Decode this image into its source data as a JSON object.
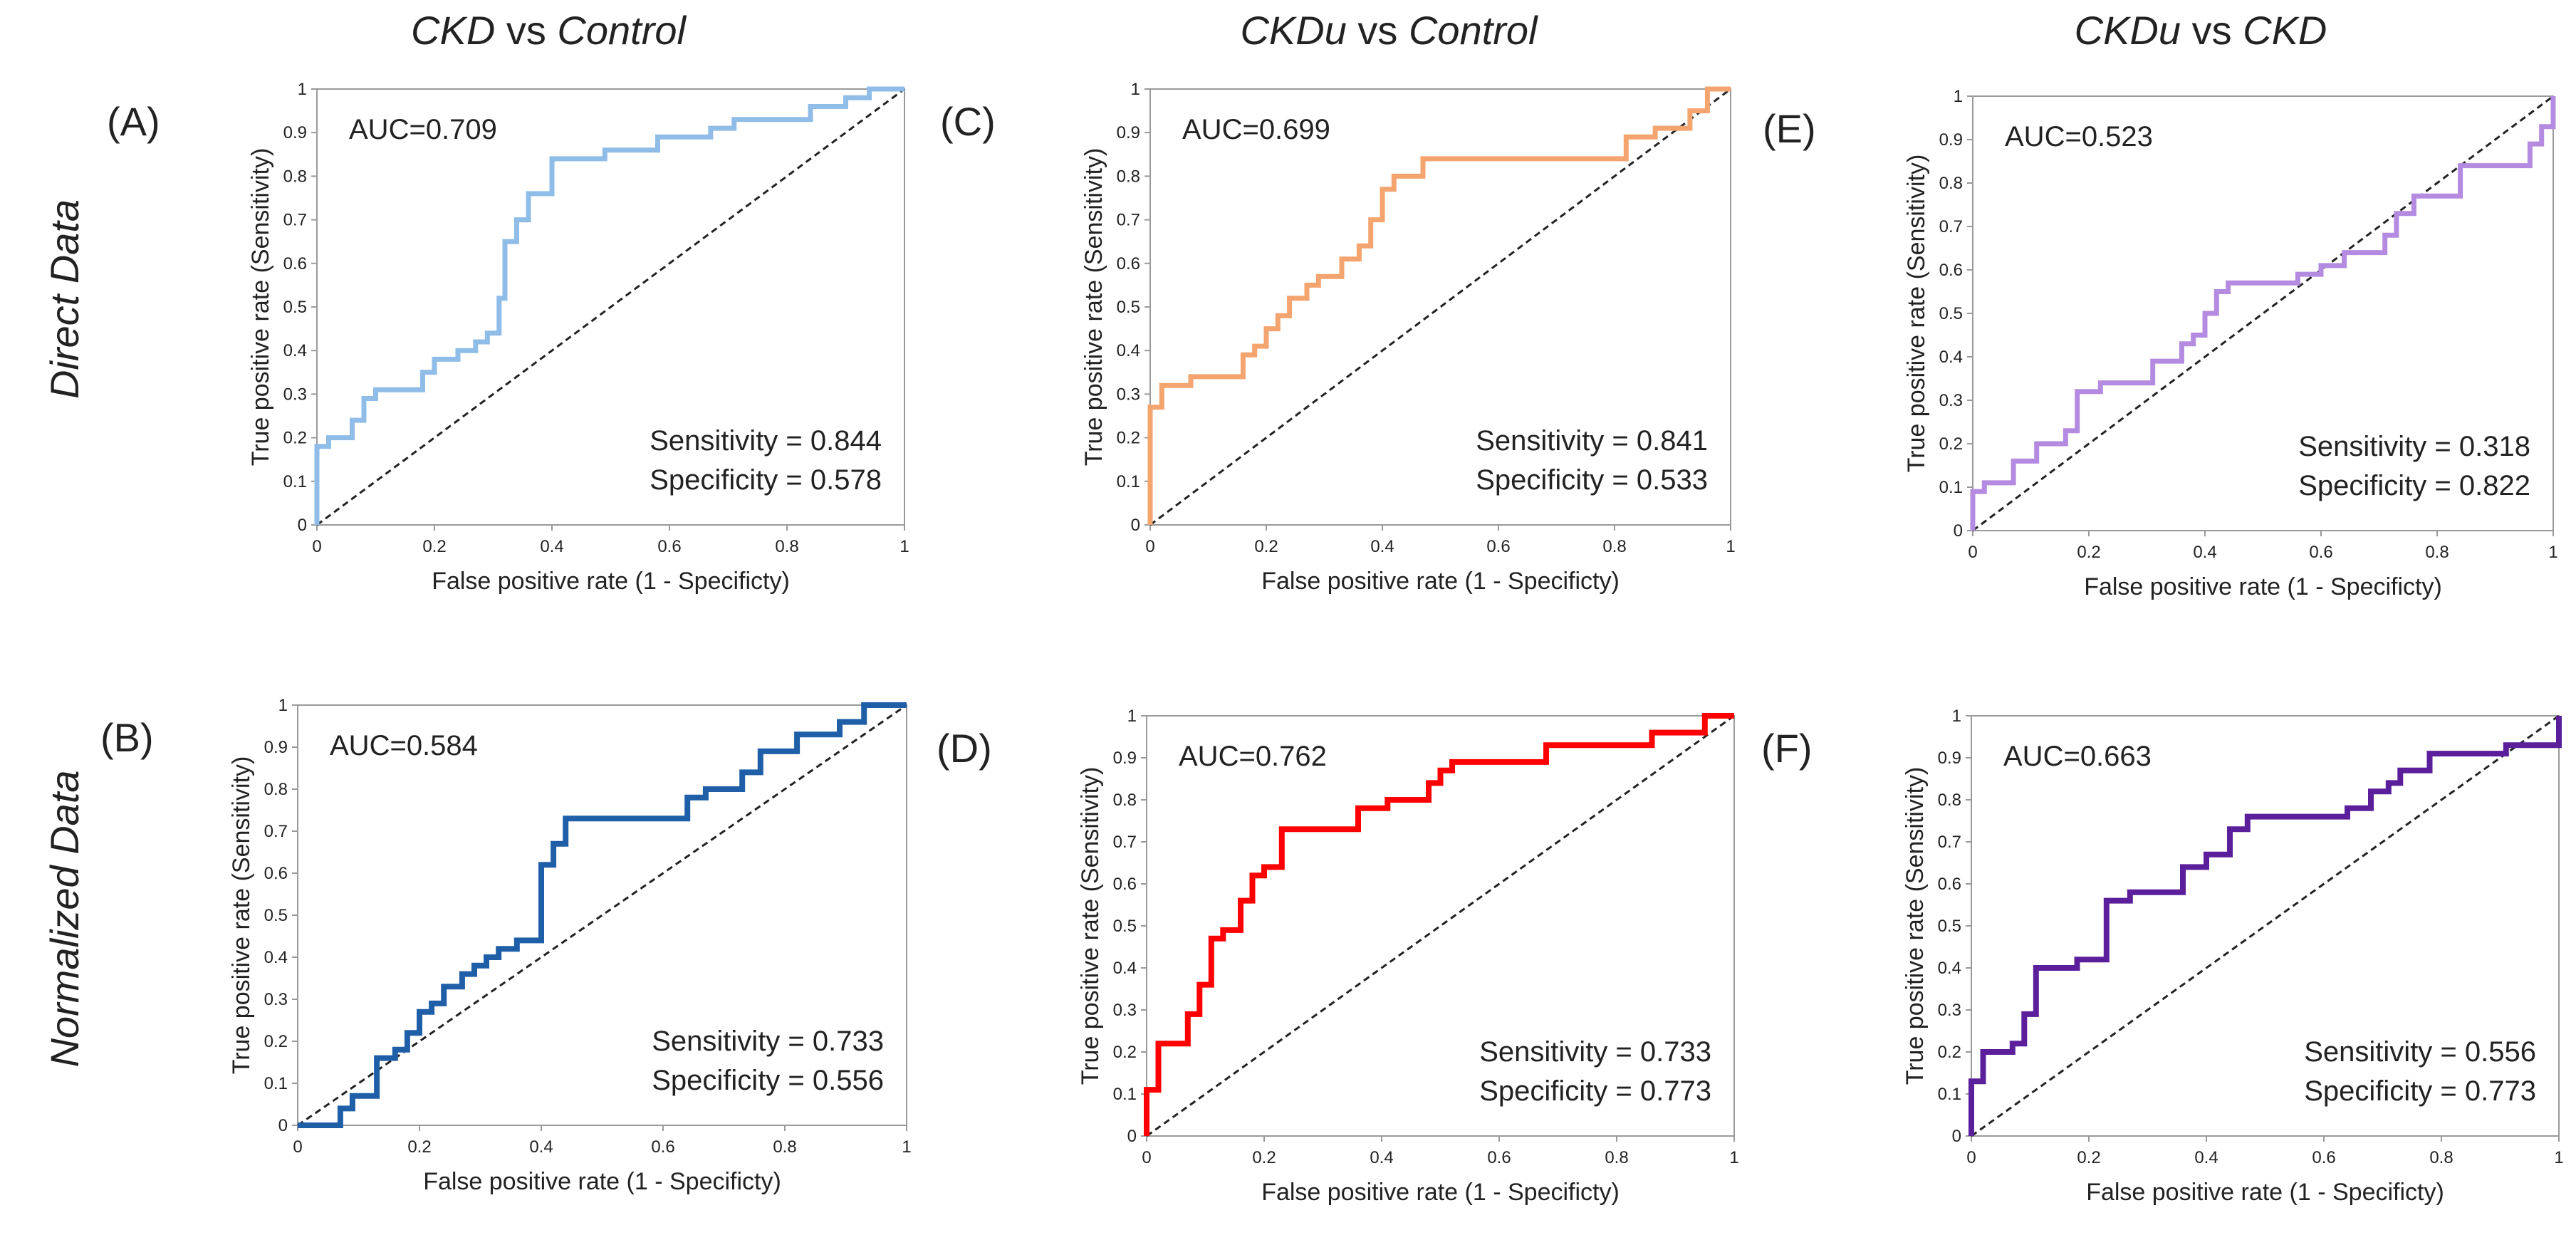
{
  "figure": {
    "column_titles": [
      {
        "left": "CKD",
        "mid": " vs ",
        "right": "Control"
      },
      {
        "left": "CKDu",
        "mid": " vs ",
        "right": "Control"
      },
      {
        "left": "CKDu",
        "mid": " vs ",
        "right": "CKD"
      }
    ],
    "row_titles": [
      "Direct Data",
      "Normalized Data"
    ],
    "colors": {
      "A": "#8fbde8",
      "B": "#1f5fa8",
      "C": "#f4a46e",
      "D": "#ff0000",
      "E": "#b48be0",
      "F": "#5b1f9c",
      "diagonal": "#222222",
      "axis": "#9a9a9a"
    }
  },
  "chart_data": [
    {
      "panel": "A",
      "label": "(A)",
      "type": "line",
      "title": "CKD vs Control — Direct Data",
      "xlabel": "False positive rate (1 - Specificty)",
      "ylabel": "True positive rate (Sensitivity)",
      "xlim": [
        0,
        1
      ],
      "ylim": [
        0,
        1
      ],
      "x_ticks": [
        "0",
        "0.2",
        "0.4",
        "0.6",
        "0.8",
        "1"
      ],
      "y_ticks": [
        "0",
        "0.1",
        "0.2",
        "0.3",
        "0.4",
        "0.5",
        "0.6",
        "0.7",
        "0.8",
        "0.9",
        "1"
      ],
      "auc_text": "AUC=0.709",
      "sensitivity_text": "Sensitivity = 0.844",
      "specificity_text": "Specificity = 0.578",
      "points": [
        [
          0,
          0
        ],
        [
          0,
          0.18
        ],
        [
          0.02,
          0.18
        ],
        [
          0.02,
          0.2
        ],
        [
          0.06,
          0.2
        ],
        [
          0.06,
          0.24
        ],
        [
          0.08,
          0.24
        ],
        [
          0.08,
          0.29
        ],
        [
          0.1,
          0.29
        ],
        [
          0.1,
          0.31
        ],
        [
          0.18,
          0.31
        ],
        [
          0.18,
          0.35
        ],
        [
          0.2,
          0.35
        ],
        [
          0.2,
          0.38
        ],
        [
          0.24,
          0.38
        ],
        [
          0.24,
          0.4
        ],
        [
          0.27,
          0.4
        ],
        [
          0.27,
          0.42
        ],
        [
          0.29,
          0.42
        ],
        [
          0.29,
          0.44
        ],
        [
          0.31,
          0.44
        ],
        [
          0.31,
          0.52
        ],
        [
          0.32,
          0.52
        ],
        [
          0.32,
          0.65
        ],
        [
          0.34,
          0.65
        ],
        [
          0.34,
          0.7
        ],
        [
          0.36,
          0.7
        ],
        [
          0.36,
          0.76
        ],
        [
          0.4,
          0.76
        ],
        [
          0.4,
          0.84
        ],
        [
          0.49,
          0.84
        ],
        [
          0.49,
          0.86
        ],
        [
          0.58,
          0.86
        ],
        [
          0.58,
          0.89
        ],
        [
          0.67,
          0.89
        ],
        [
          0.67,
          0.91
        ],
        [
          0.71,
          0.91
        ],
        [
          0.71,
          0.93
        ],
        [
          0.84,
          0.93
        ],
        [
          0.84,
          0.96
        ],
        [
          0.9,
          0.96
        ],
        [
          0.9,
          0.98
        ],
        [
          0.94,
          0.98
        ],
        [
          0.94,
          1
        ],
        [
          1,
          1
        ]
      ]
    },
    {
      "panel": "B",
      "label": "(B)",
      "type": "line",
      "title": "CKD vs Control — Normalized Data",
      "xlabel": "False positive rate (1 - Specificty)",
      "ylabel": "True positive rate (Sensitivity)",
      "xlim": [
        0,
        1
      ],
      "ylim": [
        0,
        1
      ],
      "x_ticks": [
        "0",
        "0.2",
        "0.4",
        "0.6",
        "0.8",
        "1"
      ],
      "y_ticks": [
        "0",
        "0.1",
        "0.2",
        "0.3",
        "0.4",
        "0.5",
        "0.6",
        "0.7",
        "0.8",
        "0.9",
        "1"
      ],
      "auc_text": "AUC=0.584",
      "sensitivity_text": "Sensitivity = 0.733",
      "specificity_text": "Specificity = 0.556",
      "points": [
        [
          0,
          0
        ],
        [
          0.07,
          0
        ],
        [
          0.07,
          0.04
        ],
        [
          0.09,
          0.04
        ],
        [
          0.09,
          0.07
        ],
        [
          0.13,
          0.07
        ],
        [
          0.13,
          0.16
        ],
        [
          0.16,
          0.16
        ],
        [
          0.16,
          0.18
        ],
        [
          0.18,
          0.18
        ],
        [
          0.18,
          0.22
        ],
        [
          0.2,
          0.22
        ],
        [
          0.2,
          0.27
        ],
        [
          0.22,
          0.27
        ],
        [
          0.22,
          0.29
        ],
        [
          0.24,
          0.29
        ],
        [
          0.24,
          0.33
        ],
        [
          0.27,
          0.33
        ],
        [
          0.27,
          0.36
        ],
        [
          0.29,
          0.36
        ],
        [
          0.29,
          0.38
        ],
        [
          0.31,
          0.38
        ],
        [
          0.31,
          0.4
        ],
        [
          0.33,
          0.4
        ],
        [
          0.33,
          0.42
        ],
        [
          0.36,
          0.42
        ],
        [
          0.36,
          0.44
        ],
        [
          0.4,
          0.44
        ],
        [
          0.4,
          0.62
        ],
        [
          0.42,
          0.62
        ],
        [
          0.42,
          0.67
        ],
        [
          0.44,
          0.67
        ],
        [
          0.44,
          0.73
        ],
        [
          0.64,
          0.73
        ],
        [
          0.64,
          0.78
        ],
        [
          0.67,
          0.78
        ],
        [
          0.67,
          0.8
        ],
        [
          0.73,
          0.8
        ],
        [
          0.73,
          0.84
        ],
        [
          0.76,
          0.84
        ],
        [
          0.76,
          0.89
        ],
        [
          0.82,
          0.89
        ],
        [
          0.82,
          0.93
        ],
        [
          0.89,
          0.93
        ],
        [
          0.89,
          0.96
        ],
        [
          0.93,
          0.96
        ],
        [
          0.93,
          1
        ],
        [
          1,
          1
        ]
      ]
    },
    {
      "panel": "C",
      "label": "(C)",
      "type": "line",
      "title": "CKDu vs Control — Direct Data",
      "xlabel": "False positive rate (1 - Specificty)",
      "ylabel": "True positive rate (Sensitivity)",
      "xlim": [
        0,
        1
      ],
      "ylim": [
        0,
        1
      ],
      "x_ticks": [
        "0",
        "0.2",
        "0.4",
        "0.6",
        "0.8",
        "1"
      ],
      "y_ticks": [
        "0",
        "0.1",
        "0.2",
        "0.3",
        "0.4",
        "0.5",
        "0.6",
        "0.7",
        "0.8",
        "0.9",
        "1"
      ],
      "auc_text": "AUC=0.699",
      "sensitivity_text": "Sensitivity = 0.841",
      "specificity_text": "Specificity = 0.533",
      "points": [
        [
          0,
          0
        ],
        [
          0,
          0.27
        ],
        [
          0.02,
          0.27
        ],
        [
          0.02,
          0.32
        ],
        [
          0.07,
          0.32
        ],
        [
          0.07,
          0.34
        ],
        [
          0.16,
          0.34
        ],
        [
          0.16,
          0.39
        ],
        [
          0.18,
          0.39
        ],
        [
          0.18,
          0.41
        ],
        [
          0.2,
          0.41
        ],
        [
          0.2,
          0.45
        ],
        [
          0.22,
          0.45
        ],
        [
          0.22,
          0.48
        ],
        [
          0.24,
          0.48
        ],
        [
          0.24,
          0.52
        ],
        [
          0.27,
          0.52
        ],
        [
          0.27,
          0.55
        ],
        [
          0.29,
          0.55
        ],
        [
          0.29,
          0.57
        ],
        [
          0.33,
          0.57
        ],
        [
          0.33,
          0.61
        ],
        [
          0.36,
          0.61
        ],
        [
          0.36,
          0.64
        ],
        [
          0.38,
          0.64
        ],
        [
          0.38,
          0.7
        ],
        [
          0.4,
          0.7
        ],
        [
          0.4,
          0.77
        ],
        [
          0.42,
          0.77
        ],
        [
          0.42,
          0.8
        ],
        [
          0.47,
          0.8
        ],
        [
          0.47,
          0.84
        ],
        [
          0.82,
          0.84
        ],
        [
          0.82,
          0.89
        ],
        [
          0.87,
          0.89
        ],
        [
          0.87,
          0.91
        ],
        [
          0.93,
          0.91
        ],
        [
          0.93,
          0.95
        ],
        [
          0.96,
          0.95
        ],
        [
          0.96,
          1
        ],
        [
          1,
          1
        ]
      ]
    },
    {
      "panel": "D",
      "label": "(D)",
      "type": "line",
      "title": "CKDu vs Control — Normalized Data",
      "xlabel": "False positive rate (1 - Specificty)",
      "ylabel": "True positive rate (Sensitivity)",
      "xlim": [
        0,
        1
      ],
      "ylim": [
        0,
        1
      ],
      "x_ticks": [
        "0",
        "0.2",
        "0.4",
        "0.6",
        "0.8",
        "1"
      ],
      "y_ticks": [
        "0",
        "0.1",
        "0.2",
        "0.3",
        "0.4",
        "0.5",
        "0.6",
        "0.7",
        "0.8",
        "0.9",
        "1"
      ],
      "auc_text": "AUC=0.762",
      "sensitivity_text": "Sensitivity = 0.733",
      "specificity_text": "Specificity = 0.773",
      "points": [
        [
          0,
          0
        ],
        [
          0,
          0.11
        ],
        [
          0.02,
          0.11
        ],
        [
          0.02,
          0.22
        ],
        [
          0.07,
          0.22
        ],
        [
          0.07,
          0.29
        ],
        [
          0.09,
          0.29
        ],
        [
          0.09,
          0.36
        ],
        [
          0.11,
          0.36
        ],
        [
          0.11,
          0.47
        ],
        [
          0.13,
          0.47
        ],
        [
          0.13,
          0.49
        ],
        [
          0.16,
          0.49
        ],
        [
          0.16,
          0.56
        ],
        [
          0.18,
          0.56
        ],
        [
          0.18,
          0.62
        ],
        [
          0.2,
          0.62
        ],
        [
          0.2,
          0.64
        ],
        [
          0.23,
          0.64
        ],
        [
          0.23,
          0.73
        ],
        [
          0.36,
          0.73
        ],
        [
          0.36,
          0.78
        ],
        [
          0.41,
          0.78
        ],
        [
          0.41,
          0.8
        ],
        [
          0.48,
          0.8
        ],
        [
          0.48,
          0.84
        ],
        [
          0.5,
          0.84
        ],
        [
          0.5,
          0.87
        ],
        [
          0.52,
          0.87
        ],
        [
          0.52,
          0.89
        ],
        [
          0.68,
          0.89
        ],
        [
          0.68,
          0.93
        ],
        [
          0.86,
          0.93
        ],
        [
          0.86,
          0.96
        ],
        [
          0.95,
          0.96
        ],
        [
          0.95,
          1
        ],
        [
          1,
          1
        ]
      ]
    },
    {
      "panel": "E",
      "label": "(E)",
      "type": "line",
      "title": "CKDu vs CKD — Direct Data",
      "xlabel": "False positive rate (1 - Specificty)",
      "ylabel": "True positive rate (Sensitivity)",
      "xlim": [
        0,
        1
      ],
      "ylim": [
        0,
        1
      ],
      "x_ticks": [
        "0",
        "0.2",
        "0.4",
        "0.6",
        "0.8",
        "1"
      ],
      "y_ticks": [
        "0",
        "0.1",
        "0.2",
        "0.3",
        "0.4",
        "0.5",
        "0.6",
        "0.7",
        "0.8",
        "0.9",
        "1"
      ],
      "auc_text": "AUC=0.523",
      "sensitivity_text": "Sensitivity = 0.318",
      "specificity_text": "Specificity = 0.822",
      "points": [
        [
          0,
          0
        ],
        [
          0,
          0.09
        ],
        [
          0.02,
          0.09
        ],
        [
          0.02,
          0.11
        ],
        [
          0.07,
          0.11
        ],
        [
          0.07,
          0.16
        ],
        [
          0.11,
          0.16
        ],
        [
          0.11,
          0.2
        ],
        [
          0.16,
          0.2
        ],
        [
          0.16,
          0.23
        ],
        [
          0.18,
          0.23
        ],
        [
          0.18,
          0.32
        ],
        [
          0.22,
          0.32
        ],
        [
          0.22,
          0.34
        ],
        [
          0.31,
          0.34
        ],
        [
          0.31,
          0.39
        ],
        [
          0.36,
          0.39
        ],
        [
          0.36,
          0.43
        ],
        [
          0.38,
          0.43
        ],
        [
          0.38,
          0.45
        ],
        [
          0.4,
          0.45
        ],
        [
          0.4,
          0.5
        ],
        [
          0.42,
          0.5
        ],
        [
          0.42,
          0.55
        ],
        [
          0.44,
          0.55
        ],
        [
          0.44,
          0.57
        ],
        [
          0.56,
          0.57
        ],
        [
          0.56,
          0.59
        ],
        [
          0.6,
          0.59
        ],
        [
          0.6,
          0.61
        ],
        [
          0.64,
          0.61
        ],
        [
          0.64,
          0.64
        ],
        [
          0.71,
          0.64
        ],
        [
          0.71,
          0.68
        ],
        [
          0.73,
          0.68
        ],
        [
          0.73,
          0.73
        ],
        [
          0.76,
          0.73
        ],
        [
          0.76,
          0.77
        ],
        [
          0.84,
          0.77
        ],
        [
          0.84,
          0.84
        ],
        [
          0.96,
          0.84
        ],
        [
          0.96,
          0.89
        ],
        [
          0.98,
          0.89
        ],
        [
          0.98,
          0.93
        ],
        [
          1,
          0.93
        ],
        [
          1,
          1
        ]
      ]
    },
    {
      "panel": "F",
      "label": "(F)",
      "type": "line",
      "title": "CKDu vs CKD — Normalized Data",
      "xlabel": "False positive rate (1 - Specificty)",
      "ylabel": "True positive rate (Sensitivity)",
      "xlim": [
        0,
        1
      ],
      "ylim": [
        0,
        1
      ],
      "x_ticks": [
        "0",
        "0.2",
        "0.4",
        "0.6",
        "0.8",
        "1"
      ],
      "y_ticks": [
        "0",
        "0.1",
        "0.2",
        "0.3",
        "0.4",
        "0.5",
        "0.6",
        "0.7",
        "0.8",
        "0.9",
        "1"
      ],
      "auc_text": "AUC=0.663",
      "sensitivity_text": "Sensitivity = 0.556",
      "specificity_text": "Specificity = 0.773",
      "points": [
        [
          0,
          0
        ],
        [
          0,
          0.13
        ],
        [
          0.02,
          0.13
        ],
        [
          0.02,
          0.2
        ],
        [
          0.07,
          0.2
        ],
        [
          0.07,
          0.22
        ],
        [
          0.09,
          0.22
        ],
        [
          0.09,
          0.29
        ],
        [
          0.11,
          0.29
        ],
        [
          0.11,
          0.4
        ],
        [
          0.18,
          0.4
        ],
        [
          0.18,
          0.42
        ],
        [
          0.23,
          0.42
        ],
        [
          0.23,
          0.56
        ],
        [
          0.27,
          0.56
        ],
        [
          0.27,
          0.58
        ],
        [
          0.36,
          0.58
        ],
        [
          0.36,
          0.64
        ],
        [
          0.4,
          0.64
        ],
        [
          0.4,
          0.67
        ],
        [
          0.44,
          0.67
        ],
        [
          0.44,
          0.73
        ],
        [
          0.47,
          0.73
        ],
        [
          0.47,
          0.76
        ],
        [
          0.64,
          0.76
        ],
        [
          0.64,
          0.78
        ],
        [
          0.68,
          0.78
        ],
        [
          0.68,
          0.82
        ],
        [
          0.71,
          0.82
        ],
        [
          0.71,
          0.84
        ],
        [
          0.73,
          0.84
        ],
        [
          0.73,
          0.87
        ],
        [
          0.78,
          0.87
        ],
        [
          0.78,
          0.91
        ],
        [
          0.91,
          0.91
        ],
        [
          0.91,
          0.93
        ],
        [
          1,
          0.93
        ],
        [
          1,
          1
        ]
      ]
    }
  ]
}
